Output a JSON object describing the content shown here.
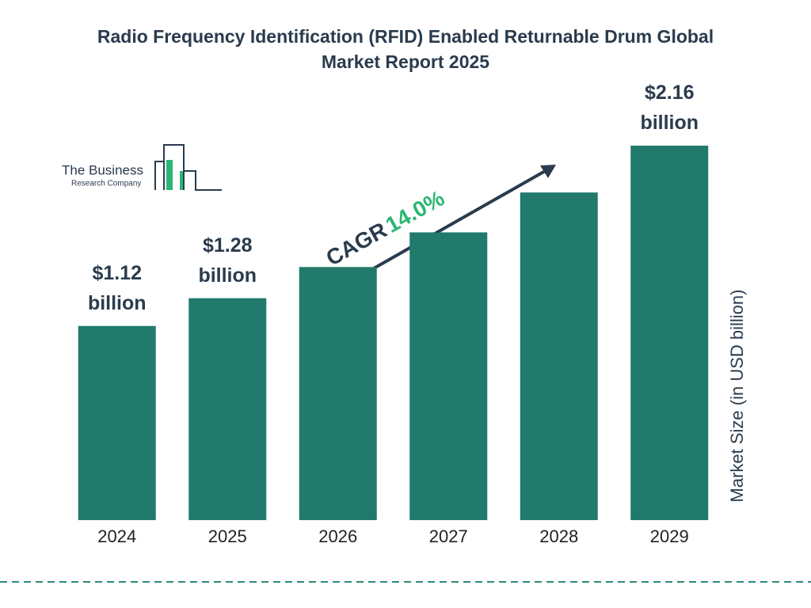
{
  "logo": {
    "line1": "The Business",
    "line2": "Research Company"
  },
  "chart_data": {
    "type": "bar",
    "title": "Radio Frequency Identification (RFID) Enabled Returnable Drum Global Market Report 2025",
    "categories": [
      "2024",
      "2025",
      "2026",
      "2027",
      "2028",
      "2029"
    ],
    "values": [
      1.12,
      1.28,
      1.46,
      1.66,
      1.89,
      2.16
    ],
    "value_labels": [
      "$1.12 billion",
      "$1.28 billion",
      null,
      null,
      null,
      "$2.16 billion"
    ],
    "color": "#217a6b",
    "y_label": "Market Size (in USD billion)",
    "annotation": {
      "text": "CAGR",
      "value": "14.0%",
      "color": "#2bb673"
    }
  }
}
